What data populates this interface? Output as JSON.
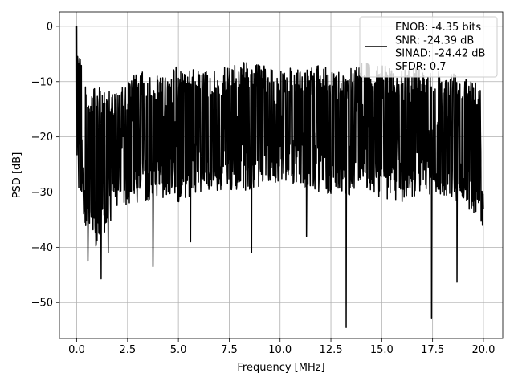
{
  "chart_data": {
    "type": "line",
    "title": "",
    "xlabel": "Frequency [MHz]",
    "ylabel": "PSD [dB]",
    "xlim": [
      -0.85,
      20.95
    ],
    "ylim": [
      -56.5,
      2.6
    ],
    "x_ticks": [
      0.0,
      2.5,
      5.0,
      7.5,
      10.0,
      12.5,
      15.0,
      17.5,
      20.0
    ],
    "x_tick_labels": [
      "0.0",
      "2.5",
      "5.0",
      "7.5",
      "10.0",
      "12.5",
      "15.0",
      "17.5",
      "20.0"
    ],
    "y_ticks": [
      0,
      -10,
      -20,
      -30,
      -40,
      -50
    ],
    "y_tick_labels": [
      "0",
      "−10",
      "−20",
      "−30",
      "−40",
      "−50"
    ],
    "grid": true,
    "legend_position": "top-right",
    "line_color": "#000000",
    "series": [
      {
        "name": "ENOB: -4.35 bits\nSNR: -24.39 dB\nSINAD: -24.42 dB\nSFDR: 0.7",
        "x_range": [
          0.0,
          20.0
        ],
        "upper_envelope": [
          [
            0.0,
            0
          ],
          [
            0.5,
            -12
          ],
          [
            1.0,
            -11
          ],
          [
            2.0,
            -12
          ],
          [
            3.0,
            -8
          ],
          [
            4.0,
            -9
          ],
          [
            5.0,
            -7
          ],
          [
            6.0,
            -8
          ],
          [
            7.0,
            -8
          ],
          [
            8.0,
            -6
          ],
          [
            9.0,
            -7
          ],
          [
            10.0,
            -7
          ],
          [
            11.0,
            -8
          ],
          [
            12.0,
            -7
          ],
          [
            13.0,
            -8
          ],
          [
            14.0,
            -6
          ],
          [
            15.0,
            -7
          ],
          [
            16.0,
            -8
          ],
          [
            17.0,
            -7
          ],
          [
            18.0,
            -8
          ],
          [
            19.0,
            -8
          ],
          [
            20.0,
            -10
          ]
        ],
        "lower_envelope": [
          [
            0.0,
            -29
          ],
          [
            0.5,
            -37
          ],
          [
            1.0,
            -41
          ],
          [
            2.0,
            -33
          ],
          [
            3.0,
            -32
          ],
          [
            4.0,
            -31
          ],
          [
            5.0,
            -32
          ],
          [
            6.0,
            -30
          ],
          [
            7.0,
            -30
          ],
          [
            8.0,
            -30
          ],
          [
            9.0,
            -29
          ],
          [
            10.0,
            -28
          ],
          [
            11.0,
            -29
          ],
          [
            12.0,
            -30
          ],
          [
            13.0,
            -31
          ],
          [
            14.0,
            -30
          ],
          [
            15.0,
            -31
          ],
          [
            16.0,
            -32
          ],
          [
            17.0,
            -30
          ],
          [
            18.0,
            -31
          ],
          [
            19.0,
            -32
          ],
          [
            20.0,
            -36
          ]
        ],
        "notable_dips": [
          [
            0.55,
            -42.5
          ],
          [
            1.2,
            -45.7
          ],
          [
            1.55,
            -41
          ],
          [
            3.75,
            -43.5
          ],
          [
            5.6,
            -39
          ],
          [
            8.6,
            -41
          ],
          [
            11.3,
            -38
          ],
          [
            13.25,
            -54.5
          ],
          [
            17.45,
            -52.9
          ],
          [
            18.7,
            -46.3
          ],
          [
            19.95,
            -36
          ]
        ]
      }
    ]
  }
}
